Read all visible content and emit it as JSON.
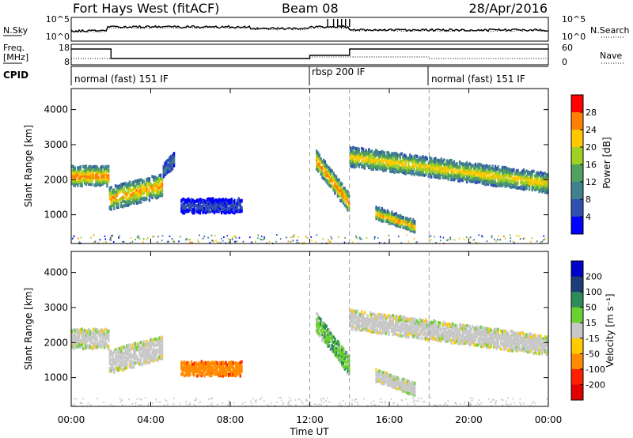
{
  "header": {
    "station": "Fort Hays West (fitACF)",
    "beam": "Beam 08",
    "date": "28/Apr/2016"
  },
  "noise_panel": {
    "left_label": "N.Sky",
    "right_label": "N.Search",
    "ticks_left": [
      "10^5",
      "10^0"
    ],
    "ticks_right": [
      "10^5",
      "10^0"
    ]
  },
  "freq_panel": {
    "left_label_line1": "Freq.",
    "left_label_line2": "[MHz]",
    "right_label": "Nave",
    "ticks_left": [
      "18",
      "8"
    ],
    "ticks_right": [
      "60",
      "0"
    ]
  },
  "cpid_panel": {
    "label": "CPID",
    "segments": [
      {
        "label": "normal (fast) 151 IF",
        "start_hour": 0,
        "end_hour": 12
      },
      {
        "label": "rbsp 200 IF",
        "start_hour": 12,
        "end_hour": 18
      },
      {
        "label": "normal (fast) 151 IF",
        "start_hour": 18,
        "end_hour": 24
      }
    ]
  },
  "time_axis": {
    "ticks": [
      "00:00",
      "04:00",
      "08:00",
      "12:00",
      "16:00",
      "20:00",
      "00:00"
    ],
    "label": "Time UT"
  },
  "power_panel": {
    "ylabel": "Slant Range [km]",
    "yticks": [
      "4000",
      "3000",
      "2000",
      "1000"
    ],
    "colorbar_label": "Power [dB]",
    "colorbar_ticks": [
      "28",
      "24",
      "20",
      "16",
      "12",
      "8",
      "4"
    ]
  },
  "velocity_panel": {
    "ylabel": "Slant Range [km]",
    "yticks": [
      "4000",
      "3000",
      "2000",
      "1000"
    ],
    "colorbar_label": "Velocity [m s⁻¹]",
    "colorbar_ticks": [
      "200",
      "100",
      "50",
      "15",
      "-15",
      "-50",
      "-100",
      "-200"
    ]
  },
  "colors": {
    "power_scale": [
      "#0000ff",
      "#3050b0",
      "#40808f",
      "#50a060",
      "#a0d020",
      "#ffc800",
      "#ff8000",
      "#ff0000"
    ],
    "velocity_scale": [
      "#0000c8",
      "#1e3c78",
      "#2e8b57",
      "#6cd030",
      "#c8c8c8",
      "#ffcc00",
      "#ff8c00",
      "#ff2000",
      "#e00000"
    ]
  },
  "chart_data": [
    {
      "type": "heatmap",
      "title": "Power",
      "x_label": "Time UT",
      "y_label": "Slant Range [km]",
      "xlim_hours": [
        0,
        24
      ],
      "ylim_km": [
        180,
        4600
      ],
      "colorbar_range_db": [
        0,
        30
      ],
      "echo_regions": [
        {
          "start_hour": 0.0,
          "end_hour": 1.9,
          "center_km": [
            2150,
            2150
          ],
          "width_km": 500,
          "peak_db": 26
        },
        {
          "start_hour": 1.9,
          "end_hour": 4.6,
          "center_km": [
            1500,
            1900
          ],
          "width_km": 600,
          "peak_db": 24
        },
        {
          "start_hour": 4.6,
          "end_hour": 5.2,
          "center_km": [
            2300,
            2650
          ],
          "width_km": 350,
          "peak_db": 10
        },
        {
          "start_hour": 5.5,
          "end_hour": 8.6,
          "center_km": [
            1300,
            1300
          ],
          "width_km": 350,
          "peak_db": 6
        },
        {
          "start_hour": 12.3,
          "end_hour": 14.0,
          "center_km": [
            2600,
            1350
          ],
          "width_km": 500,
          "peak_db": 26
        },
        {
          "start_hour": 14.0,
          "end_hour": 24.0,
          "center_km": [
            2700,
            1950
          ],
          "width_km": 500,
          "peak_db": 22
        },
        {
          "start_hour": 15.3,
          "end_hour": 17.3,
          "center_km": [
            1100,
            700
          ],
          "width_km": 300,
          "peak_db": 24
        }
      ]
    },
    {
      "type": "heatmap",
      "title": "Velocity",
      "x_label": "Time UT",
      "y_label": "Slant Range [km]",
      "xlim_hours": [
        0,
        24
      ],
      "ylim_km": [
        180,
        4600
      ],
      "colorbar_range_ms": [
        -250,
        250
      ],
      "echo_regions": [
        {
          "start_hour": 0.0,
          "end_hour": 1.9,
          "center_km": [
            2150,
            2150
          ],
          "width_km": 500,
          "velocity_ms": 0
        },
        {
          "start_hour": 1.9,
          "end_hour": 4.6,
          "center_km": [
            1500,
            1900
          ],
          "width_km": 600,
          "velocity_ms": 0
        },
        {
          "start_hour": 5.5,
          "end_hour": 8.6,
          "center_km": [
            1300,
            1300
          ],
          "width_km": 350,
          "velocity_ms": -60
        },
        {
          "start_hour": 12.3,
          "end_hour": 14.0,
          "center_km": [
            2600,
            1350
          ],
          "width_km": 500,
          "velocity_ms": 25
        },
        {
          "start_hour": 14.0,
          "end_hour": 24.0,
          "center_km": [
            2700,
            1950
          ],
          "width_km": 500,
          "velocity_ms": 0
        },
        {
          "start_hour": 15.3,
          "end_hour": 17.3,
          "center_km": [
            1100,
            700
          ],
          "width_km": 300,
          "velocity_ms": 0
        }
      ]
    }
  ]
}
